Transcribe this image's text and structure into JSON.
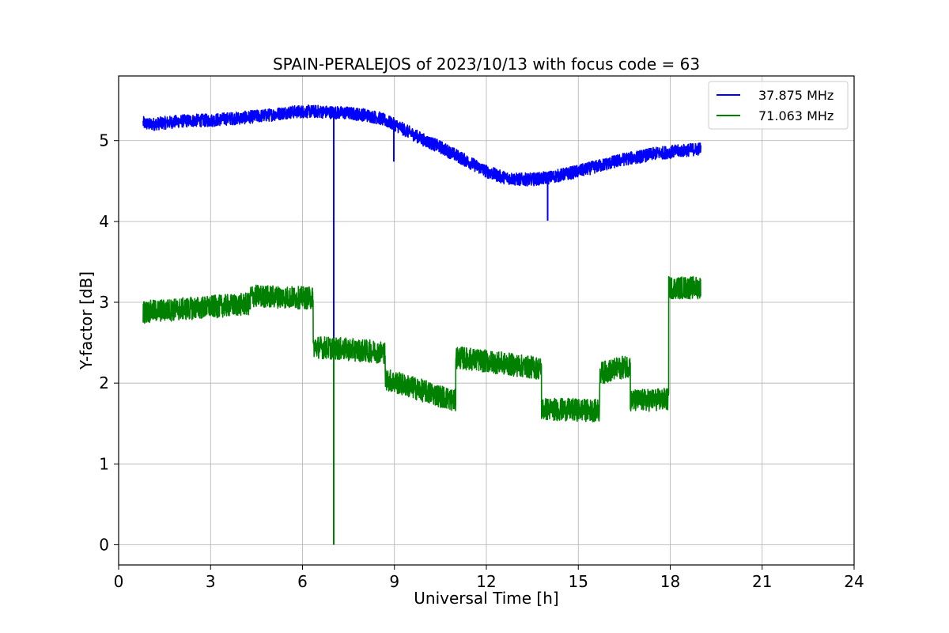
{
  "chart_data": {
    "type": "line",
    "title": "SPAIN-PERALEJOS of 2023/10/13 with focus code = 63",
    "xlabel": "Universal Time [h]",
    "ylabel": "Y-factor [dB]",
    "xlim": [
      0,
      24
    ],
    "ylim": [
      -0.25,
      5.8
    ],
    "xticks": [
      "0",
      "3",
      "6",
      "9",
      "12",
      "15",
      "18",
      "21",
      "24"
    ],
    "yticks": [
      "0",
      "1",
      "2",
      "3",
      "4",
      "5"
    ],
    "grid": true,
    "legend_position": "top-right",
    "series": [
      {
        "name": "37.875 MHz",
        "color": "#0000ff",
        "noise_band": 0.08,
        "x": [
          0.8,
          1.0,
          1.5,
          2.0,
          2.5,
          3.0,
          3.5,
          4.0,
          4.5,
          5.0,
          5.5,
          6.0,
          6.5,
          7.0,
          7.5,
          8.0,
          8.5,
          9.0,
          9.5,
          10.0,
          10.5,
          11.0,
          11.5,
          12.0,
          12.5,
          13.0,
          13.5,
          14.0,
          14.5,
          15.0,
          15.5,
          16.0,
          16.5,
          17.0,
          17.5,
          18.0,
          18.5,
          19.0
        ],
        "y": [
          5.22,
          5.2,
          5.22,
          5.24,
          5.25,
          5.25,
          5.27,
          5.28,
          5.3,
          5.32,
          5.35,
          5.36,
          5.36,
          5.35,
          5.34,
          5.32,
          5.28,
          5.2,
          5.1,
          5.0,
          4.92,
          4.82,
          4.72,
          4.62,
          4.55,
          4.52,
          4.52,
          4.54,
          4.58,
          4.62,
          4.67,
          4.72,
          4.77,
          4.8,
          4.84,
          4.86,
          4.88,
          4.9
        ],
        "spikes": [
          {
            "x": 7.02,
            "y": 0.0
          },
          {
            "x": 8.98,
            "y": 4.74
          },
          {
            "x": 14.0,
            "y": 4.01
          }
        ]
      },
      {
        "name": "71.063 MHz",
        "color": "#008000",
        "noise_band": 0.14,
        "segments": [
          {
            "x0": 0.8,
            "x1": 4.3,
            "y0": 2.88,
            "y1": 2.98
          },
          {
            "x0": 4.3,
            "x1": 6.35,
            "y0": 3.08,
            "y1": 3.05
          },
          {
            "x0": 6.35,
            "x1": 8.7,
            "y0": 2.45,
            "y1": 2.38
          },
          {
            "x0": 8.7,
            "x1": 11.0,
            "y0": 2.05,
            "y1": 1.78
          },
          {
            "x0": 11.0,
            "x1": 13.8,
            "y0": 2.32,
            "y1": 2.18
          },
          {
            "x0": 13.8,
            "x1": 15.7,
            "y0": 1.68,
            "y1": 1.66
          },
          {
            "x0": 15.7,
            "x1": 16.7,
            "y0": 2.12,
            "y1": 2.22
          },
          {
            "x0": 16.7,
            "x1": 17.95,
            "y0": 1.78,
            "y1": 1.8
          },
          {
            "x0": 17.95,
            "x1": 19.0,
            "y0": 3.18,
            "y1": 3.18
          }
        ],
        "spikes": [
          {
            "x": 7.02,
            "y": 0.0
          }
        ]
      }
    ]
  }
}
